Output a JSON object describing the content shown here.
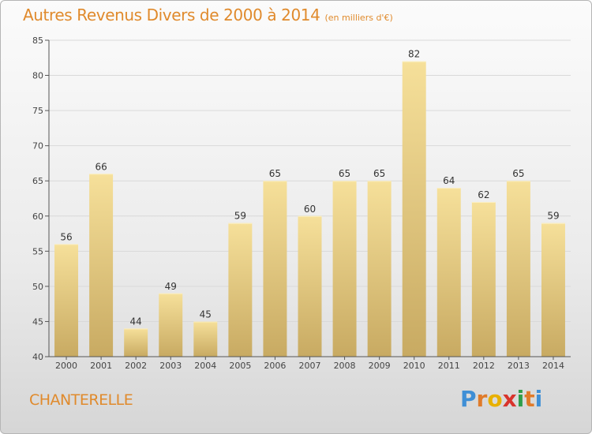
{
  "header": {
    "title": "Autres Revenus Divers de 2000 à 2014",
    "subtitle": "(en milliers d'€)"
  },
  "footer": {
    "commune": "CHANTERELLE",
    "logo_letters": [
      "P",
      "r",
      "o",
      "x",
      "i",
      "t",
      "i"
    ],
    "logo_colors": [
      "#3f8fd6",
      "#e07b2a",
      "#e8b000",
      "#d8342c",
      "#2f9e4a",
      "#e07b2a",
      "#3f8fd6"
    ]
  },
  "chart_data": {
    "type": "bar",
    "categories": [
      "2000",
      "2001",
      "2002",
      "2003",
      "2004",
      "2005",
      "2006",
      "2007",
      "2008",
      "2009",
      "2010",
      "2011",
      "2012",
      "2013",
      "2014"
    ],
    "values": [
      56,
      66,
      44,
      49,
      45,
      59,
      65,
      60,
      65,
      65,
      82,
      64,
      62,
      65,
      59
    ],
    "ylim": [
      40,
      85
    ],
    "yticks": [
      40,
      45,
      50,
      55,
      60,
      65,
      70,
      75,
      80,
      85
    ],
    "grid": true,
    "bar_color_top": "#f6e09a",
    "bar_color_bottom": "#c8aa62",
    "grid_color": "#d9d9d9",
    "axis_color": "#555555"
  }
}
